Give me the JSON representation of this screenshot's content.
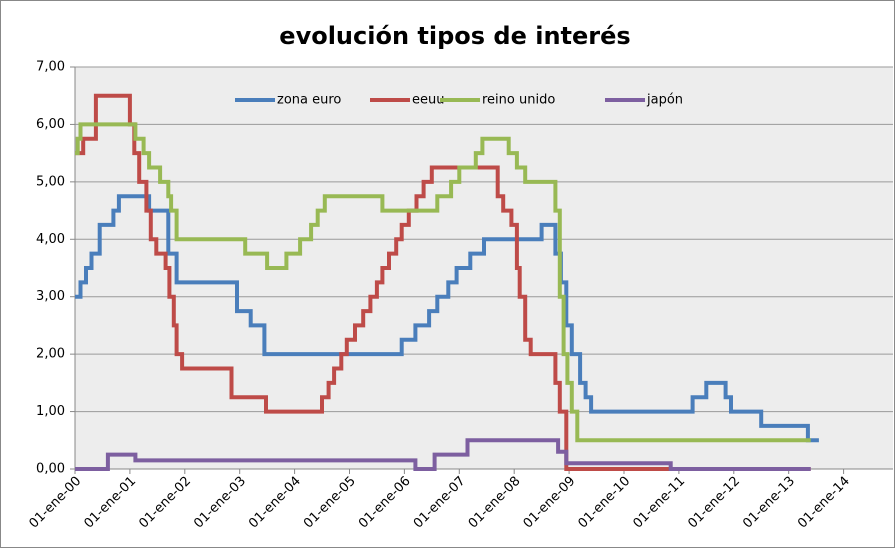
{
  "chart_data": {
    "type": "line",
    "title": "evolución tipos de interés",
    "xlim": [
      2000,
      2014.9
    ],
    "ylim": [
      0,
      7
    ],
    "grid": true,
    "legend": "top",
    "step": true,
    "xticks": [
      {
        "value": 2000,
        "label": "01-ene-00"
      },
      {
        "value": 2001,
        "label": "01-ene-01"
      },
      {
        "value": 2002,
        "label": "01-ene-02"
      },
      {
        "value": 2003,
        "label": "01-ene-03"
      },
      {
        "value": 2004,
        "label": "01-ene-04"
      },
      {
        "value": 2005,
        "label": "01-ene-05"
      },
      {
        "value": 2006,
        "label": "01-ene-06"
      },
      {
        "value": 2007,
        "label": "01-ene-07"
      },
      {
        "value": 2008,
        "label": "01-ene-08"
      },
      {
        "value": 2009,
        "label": "01-ene-09"
      },
      {
        "value": 2010,
        "label": "01-ene-10"
      },
      {
        "value": 2011,
        "label": "01-ene-11"
      },
      {
        "value": 2012,
        "label": "01-ene-12"
      },
      {
        "value": 2013,
        "label": "01-ene-13"
      },
      {
        "value": 2014,
        "label": "01-ene-14"
      }
    ],
    "yticks": [
      {
        "value": 0,
        "label": "0,00"
      },
      {
        "value": 1,
        "label": "1,00"
      },
      {
        "value": 2,
        "label": "2,00"
      },
      {
        "value": 3,
        "label": "3,00"
      },
      {
        "value": 4,
        "label": "4,00"
      },
      {
        "value": 5,
        "label": "5,00"
      },
      {
        "value": 6,
        "label": "6,00"
      },
      {
        "value": 7,
        "label": "7,00"
      }
    ],
    "series": [
      {
        "name": "zona euro",
        "color": "#4a7ebb",
        "x": [
          2000,
          2000.1,
          2000.1,
          2000.2,
          2000.2,
          2000.3,
          2000.3,
          2000.45,
          2000.45,
          2000.7,
          2000.7,
          2000.8,
          2000.8,
          2001.35,
          2001.35,
          2001.7,
          2001.7,
          2001.85,
          2001.85,
          2002.95,
          2002.95,
          2003.2,
          2003.2,
          2003.45,
          2003.45,
          2005.95,
          2005.95,
          2006.2,
          2006.2,
          2006.45,
          2006.45,
          2006.6,
          2006.6,
          2006.8,
          2006.8,
          2006.95,
          2006.95,
          2007.2,
          2007.2,
          2007.45,
          2007.45,
          2008.5,
          2008.5,
          2008.75,
          2008.75,
          2008.85,
          2008.85,
          2008.95,
          2008.95,
          2009.05,
          2009.05,
          2009.2,
          2009.2,
          2009.3,
          2009.3,
          2009.4,
          2009.4,
          2011.25,
          2011.25,
          2011.5,
          2011.5,
          2011.85,
          2011.85,
          2011.95,
          2011.95,
          2012.5,
          2012.5,
          2013.35,
          2013.35,
          2013.55
        ],
        "values": [
          3,
          3,
          3.25,
          3.25,
          3.5,
          3.5,
          3.75,
          3.75,
          4.25,
          4.25,
          4.5,
          4.5,
          4.75,
          4.75,
          4.5,
          4.5,
          3.75,
          3.75,
          3.25,
          3.25,
          2.75,
          2.75,
          2.5,
          2.5,
          2,
          2,
          2.25,
          2.25,
          2.5,
          2.5,
          2.75,
          2.75,
          3,
          3,
          3.25,
          3.25,
          3.5,
          3.5,
          3.75,
          3.75,
          4,
          4,
          4.25,
          4.25,
          3.75,
          3.75,
          3.25,
          3.25,
          2.5,
          2.5,
          2,
          2,
          1.5,
          1.5,
          1.25,
          1.25,
          1,
          1,
          1.25,
          1.25,
          1.5,
          1.5,
          1.25,
          1.25,
          1,
          1,
          0.75,
          0.75,
          0.5,
          0.5
        ]
      },
      {
        "name": "eeuu",
        "color": "#be4b48",
        "x": [
          2000,
          2000.15,
          2000.15,
          2000.38,
          2000.38,
          2001,
          2001,
          2001.08,
          2001.08,
          2001.17,
          2001.17,
          2001.3,
          2001.3,
          2001.38,
          2001.38,
          2001.48,
          2001.48,
          2001.65,
          2001.65,
          2001.72,
          2001.72,
          2001.8,
          2001.8,
          2001.85,
          2001.85,
          2001.95,
          2001.95,
          2002.85,
          2002.85,
          2003.48,
          2003.48,
          2004.5,
          2004.5,
          2004.62,
          2004.62,
          2004.72,
          2004.72,
          2004.85,
          2004.85,
          2004.95,
          2004.95,
          2005.1,
          2005.1,
          2005.25,
          2005.25,
          2005.38,
          2005.38,
          2005.5,
          2005.5,
          2005.6,
          2005.6,
          2005.72,
          2005.72,
          2005.85,
          2005.85,
          2005.95,
          2005.95,
          2006.08,
          2006.08,
          2006.22,
          2006.22,
          2006.35,
          2006.35,
          2006.5,
          2006.5,
          2007.7,
          2007.7,
          2007.8,
          2007.8,
          2007.95,
          2007.95,
          2008.05,
          2008.05,
          2008.1,
          2008.1,
          2008.2,
          2008.2,
          2008.3,
          2008.3,
          2008.75,
          2008.75,
          2008.83,
          2008.83,
          2008.95,
          2008.95,
          2013.4
        ],
        "values": [
          5.5,
          5.5,
          5.75,
          5.75,
          6.5,
          6.5,
          6,
          6,
          5.5,
          5.5,
          5,
          5,
          4.5,
          4.5,
          4,
          4,
          3.75,
          3.75,
          3.5,
          3.5,
          3,
          3,
          2.5,
          2.5,
          2,
          2,
          1.75,
          1.75,
          1.25,
          1.25,
          1,
          1,
          1.25,
          1.25,
          1.5,
          1.5,
          1.75,
          1.75,
          2,
          2,
          2.25,
          2.25,
          2.5,
          2.5,
          2.75,
          2.75,
          3,
          3,
          3.25,
          3.25,
          3.5,
          3.5,
          3.75,
          3.75,
          4,
          4,
          4.25,
          4.25,
          4.5,
          4.5,
          4.75,
          4.75,
          5,
          5,
          5.25,
          5.25,
          4.75,
          4.75,
          4.5,
          4.5,
          4.25,
          4.25,
          3.5,
          3.5,
          3,
          3,
          2.25,
          2.25,
          2,
          2,
          1.5,
          1.5,
          1,
          1,
          0,
          0
        ]
      },
      {
        "name": "reino unido",
        "color": "#98b954",
        "x": [
          2000,
          2000.05,
          2000.05,
          2000.1,
          2000.1,
          2001.1,
          2001.1,
          2001.25,
          2001.25,
          2001.35,
          2001.35,
          2001.55,
          2001.55,
          2001.7,
          2001.7,
          2001.75,
          2001.75,
          2001.85,
          2001.85,
          2003.1,
          2003.1,
          2003.5,
          2003.5,
          2003.85,
          2003.85,
          2004.1,
          2004.1,
          2004.3,
          2004.3,
          2004.42,
          2004.42,
          2004.55,
          2004.55,
          2005.6,
          2005.6,
          2006.6,
          2006.6,
          2006.85,
          2006.85,
          2007,
          2007,
          2007.3,
          2007.3,
          2007.42,
          2007.42,
          2007.9,
          2007.9,
          2008.05,
          2008.05,
          2008.2,
          2008.2,
          2008.75,
          2008.75,
          2008.83,
          2008.83,
          2008.9,
          2008.9,
          2008.97,
          2008.97,
          2009.05,
          2009.05,
          2009.15,
          2009.15,
          2013.4
        ],
        "values": [
          5.5,
          5.5,
          5.75,
          5.75,
          6,
          6,
          5.75,
          5.75,
          5.5,
          5.5,
          5.25,
          5.25,
          5,
          5,
          4.75,
          4.75,
          4.5,
          4.5,
          4,
          4,
          3.75,
          3.75,
          3.5,
          3.5,
          3.75,
          3.75,
          4,
          4,
          4.25,
          4.25,
          4.5,
          4.5,
          4.75,
          4.75,
          4.5,
          4.5,
          4.75,
          4.75,
          5,
          5,
          5.25,
          5.25,
          5.5,
          5.5,
          5.75,
          5.75,
          5.5,
          5.5,
          5.25,
          5.25,
          5,
          5,
          4.5,
          4.5,
          3,
          3,
          2,
          2,
          1.5,
          1.5,
          1,
          1,
          0.5,
          0.5
        ]
      },
      {
        "name": "japón",
        "color": "#7d5fa0",
        "x": [
          2000,
          2000.6,
          2000.6,
          2001.1,
          2001.1,
          2006.2,
          2006.2,
          2006.55,
          2006.55,
          2007.15,
          2007.15,
          2008.8,
          2008.8,
          2008.95,
          2008.95,
          2010.85,
          2010.85,
          2013.4
        ],
        "values": [
          0,
          0,
          0.25,
          0.25,
          0.15,
          0.15,
          0,
          0,
          0.25,
          0.25,
          0.5,
          0.5,
          0.3,
          0.3,
          0.1,
          0.1,
          0,
          0
        ]
      }
    ]
  }
}
